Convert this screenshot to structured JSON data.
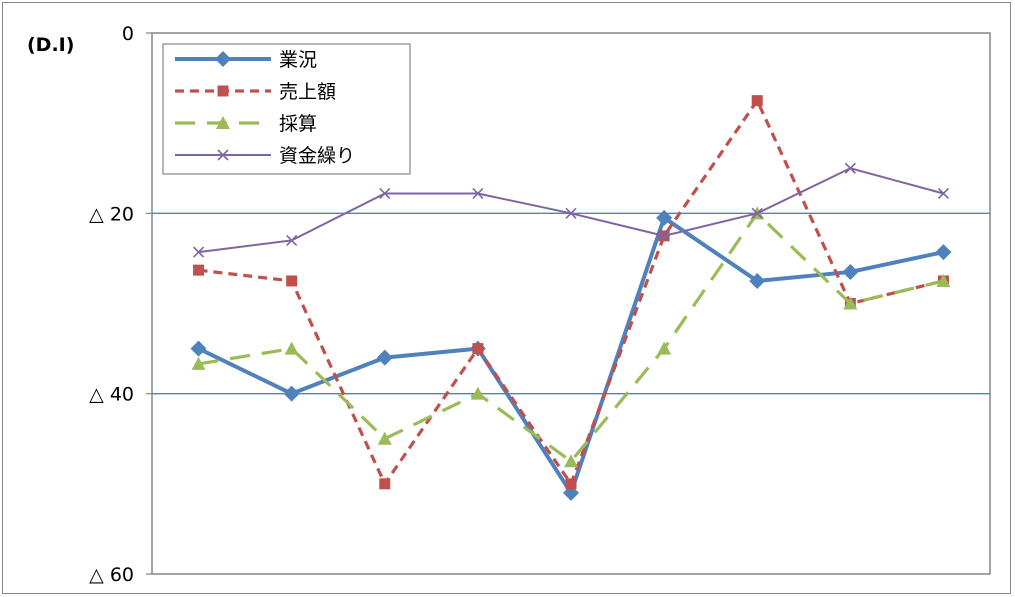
{
  "chart_data": {
    "type": "line",
    "unit_label": "(D.I)",
    "y_axis": {
      "min": -60,
      "max": 0,
      "ticks": [
        {
          "value": 0,
          "label": "0"
        },
        {
          "value": -20,
          "label": "△ 20"
        },
        {
          "value": -40,
          "label": "△ 40"
        },
        {
          "value": -60,
          "label": "△ 60"
        }
      ],
      "gridlines": [
        -20,
        -40
      ]
    },
    "x_count": 9,
    "legend_position": "top-left",
    "series": [
      {
        "name": "業況",
        "color": "#4f81bd",
        "marker": "diamond",
        "dash": "solid",
        "values": [
          -35,
          -40,
          -36,
          -35,
          -51,
          -20.5,
          -27.5,
          -26.5,
          -24.3
        ]
      },
      {
        "name": "売上額",
        "color": "#c0504d",
        "marker": "square",
        "dash": "short-dash",
        "values": [
          -26.3,
          -27.5,
          -50,
          -35,
          -50,
          -22.5,
          -7.5,
          -30,
          -27.5
        ]
      },
      {
        "name": "採算",
        "color": "#9bbb59",
        "marker": "triangle",
        "dash": "long-dash",
        "values": [
          -36.7,
          -35,
          -45,
          -40,
          -47.5,
          -35,
          -20,
          -30,
          -27.5
        ]
      },
      {
        "name": "資金繰り",
        "color": "#8064a2",
        "marker": "x",
        "dash": "solid",
        "values": [
          -24.3,
          -23,
          -17.8,
          -17.8,
          -20,
          -22.5,
          -20,
          -15,
          -17.8
        ]
      }
    ]
  }
}
